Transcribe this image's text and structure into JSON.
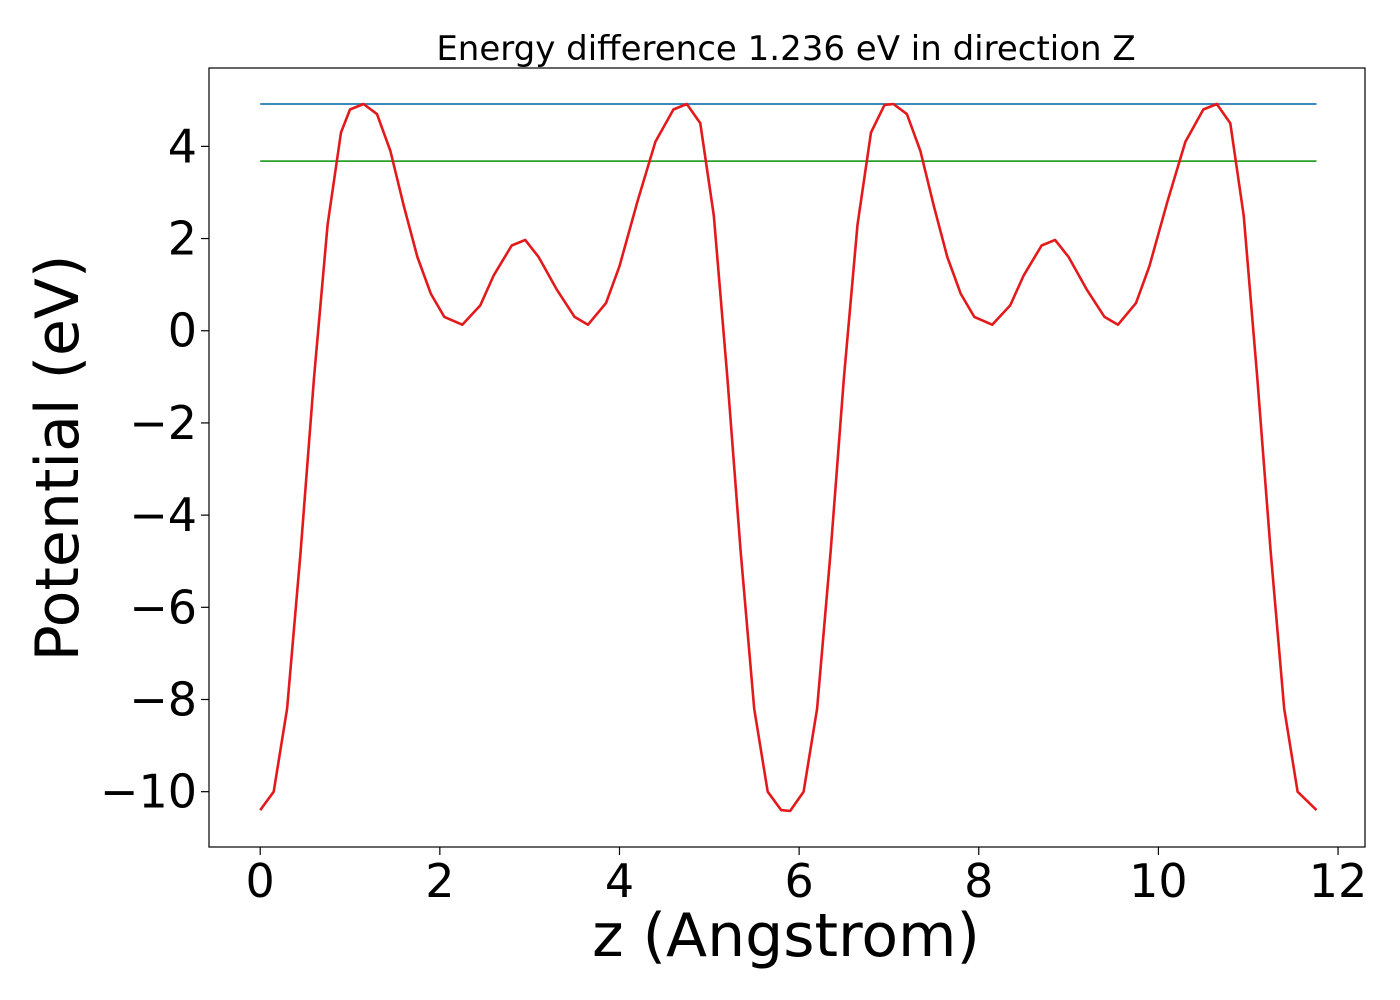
{
  "chart_data": {
    "type": "line",
    "title": "Energy difference 1.236 eV in direction Z",
    "xlabel": "z (Angstrom)",
    "ylabel": "Potential (eV)",
    "xlim": [
      -0.57,
      12.3
    ],
    "ylim": [
      -11.2,
      5.7
    ],
    "xticks": [
      0,
      2,
      4,
      6,
      8,
      10,
      12
    ],
    "xtick_labels": [
      "0",
      "2",
      "4",
      "6",
      "8",
      "10",
      "12"
    ],
    "yticks": [
      -10,
      -8,
      -6,
      -4,
      -2,
      0,
      2,
      4
    ],
    "ytick_labels": [
      "−10",
      "−8",
      "−6",
      "−4",
      "−2",
      "0",
      "2",
      "4"
    ],
    "grid": false,
    "series": [
      {
        "color": "#1f77b4",
        "x": [
          0,
          11.76
        ],
        "y": [
          4.92,
          4.92
        ]
      },
      {
        "color": "#2ca02c",
        "x": [
          0,
          11.76
        ],
        "y": [
          3.68,
          3.68
        ]
      },
      {
        "color": "#e31a1c",
        "x": [
          0,
          0.15,
          0.3,
          0.45,
          0.6,
          0.75,
          0.9,
          1.0,
          1.15,
          1.3,
          1.45,
          1.6,
          1.75,
          1.9,
          2.05,
          2.25,
          2.45,
          2.6,
          2.8,
          2.95,
          3.1,
          3.3,
          3.5,
          3.65,
          3.85,
          4.0,
          4.2,
          4.4,
          4.6,
          4.75,
          4.9,
          5.05,
          5.2,
          5.35,
          5.5,
          5.65,
          5.8,
          5.9,
          6.05,
          6.2,
          6.35,
          6.5,
          6.65,
          6.8,
          6.95,
          7.05,
          7.2,
          7.35,
          7.5,
          7.65,
          7.8,
          7.95,
          8.15,
          8.35,
          8.5,
          8.7,
          8.85,
          9.0,
          9.2,
          9.4,
          9.55,
          9.75,
          9.9,
          10.1,
          10.3,
          10.5,
          10.65,
          10.8,
          10.95,
          11.1,
          11.25,
          11.4,
          11.55,
          11.76
        ],
        "y": [
          -10.4,
          -10.0,
          -8.2,
          -4.8,
          -1.0,
          2.3,
          4.3,
          4.8,
          4.92,
          4.7,
          3.9,
          2.7,
          1.6,
          0.8,
          0.3,
          0.13,
          0.55,
          1.2,
          1.85,
          1.97,
          1.6,
          0.9,
          0.3,
          0.13,
          0.6,
          1.4,
          2.8,
          4.1,
          4.8,
          4.92,
          4.5,
          2.5,
          -1.0,
          -4.8,
          -8.2,
          -10.0,
          -10.4,
          -10.42,
          -10.0,
          -8.2,
          -4.8,
          -1.0,
          2.3,
          4.3,
          4.9,
          4.92,
          4.7,
          3.9,
          2.7,
          1.6,
          0.8,
          0.3,
          0.13,
          0.55,
          1.2,
          1.85,
          1.97,
          1.6,
          0.9,
          0.3,
          0.13,
          0.6,
          1.4,
          2.8,
          4.1,
          4.8,
          4.92,
          4.5,
          2.5,
          -1.0,
          -4.8,
          -8.2,
          -10.0,
          -10.4
        ]
      }
    ]
  }
}
